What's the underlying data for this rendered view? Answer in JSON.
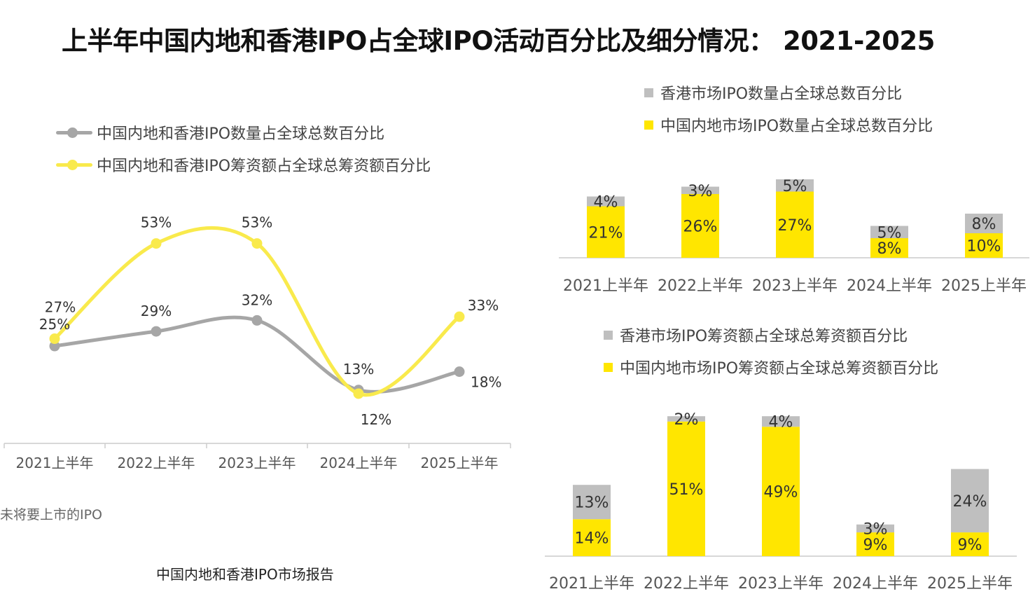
{
  "title": "上半年中国内地和香港IPO占全球IPO活动百分比及细分情况： 2021-2025",
  "footnote": "未将要上市的IPO",
  "source": "中国内地和香港IPO市场报告",
  "colors": {
    "gray": "#a6a6a6",
    "gray_bar": "#bfbfbf",
    "yellow": "#ffe600",
    "yellow_line": "#f9ea4c",
    "axis": "#cccccc"
  },
  "chart_data": [
    {
      "type": "line",
      "categories": [
        "2021上半年",
        "2022上半年",
        "2023上半年",
        "2024上半年",
        "2025上半年"
      ],
      "series": [
        {
          "name": "中国内地和香港IPO数量占全球总数百分比",
          "values": [
            25,
            29,
            32,
            13,
            18
          ],
          "labels": [
            "25%",
            "29%",
            "32%",
            "13%",
            "18%"
          ]
        },
        {
          "name": "中国内地和香港IPO筹资额占全球总筹资额百分比",
          "values": [
            27,
            53,
            53,
            12,
            33
          ],
          "labels": [
            "27%",
            "53%",
            "53%",
            "12%",
            "33%"
          ]
        }
      ],
      "legend": "top-left",
      "grid": false
    },
    {
      "type": "bar",
      "stacked": true,
      "categories": [
        "2021上半年",
        "2022上半年",
        "2023上半年",
        "2024上半年",
        "2025上半年"
      ],
      "series": [
        {
          "name": "中国内地市场IPO数量占全球总数百分比",
          "values": [
            21,
            26,
            27,
            8,
            10
          ],
          "labels": [
            "21%",
            "26%",
            "27%",
            "8%",
            "10%"
          ]
        },
        {
          "name": "香港市场IPO数量占全球总数百分比",
          "values": [
            4,
            3,
            5,
            5,
            8
          ],
          "labels": [
            "4%",
            "3%",
            "5%",
            "5%",
            "8%"
          ]
        }
      ],
      "legend": "top"
    },
    {
      "type": "bar",
      "stacked": true,
      "categories": [
        "2021上半年",
        "2022上半年",
        "2023上半年",
        "2024上半年",
        "2025上半年"
      ],
      "series": [
        {
          "name": "中国内地市场IPO筹资额占全球总筹资额百分比",
          "values": [
            14,
            51,
            49,
            9,
            9
          ],
          "labels": [
            "14%",
            "51%",
            "49%",
            "9%",
            "9%"
          ]
        },
        {
          "name": "香港市场IPO筹资额占全球总筹资额百分比",
          "values": [
            13,
            2,
            4,
            3,
            24
          ],
          "labels": [
            "13%",
            "2%",
            "4%",
            "3%",
            "24%"
          ]
        }
      ],
      "legend": "top"
    }
  ]
}
